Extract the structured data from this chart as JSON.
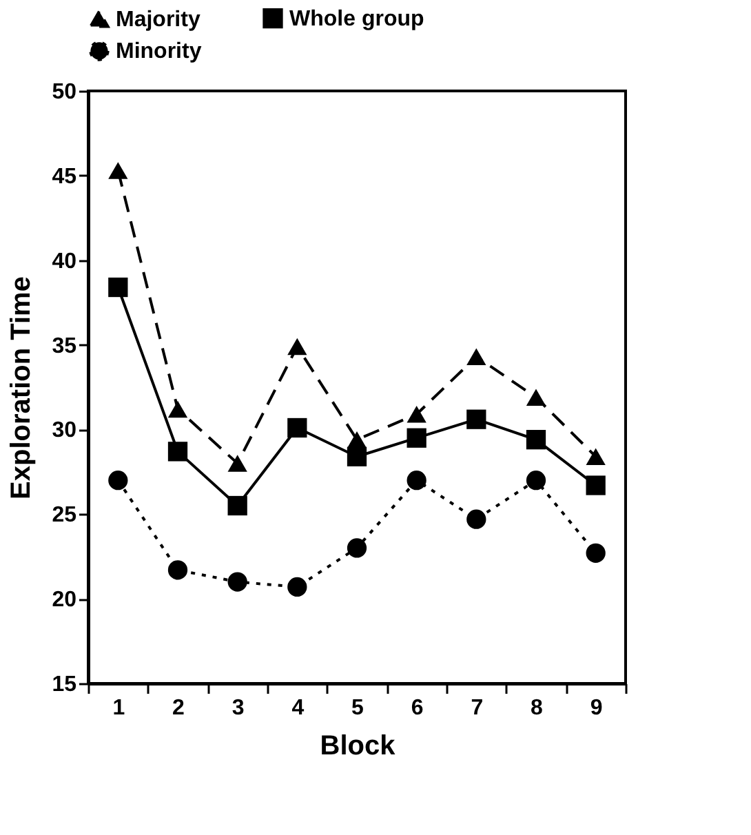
{
  "chart_data": {
    "type": "line",
    "xlabel": "Block",
    "ylabel": "Exploration Time",
    "categories": [
      "1",
      "2",
      "3",
      "4",
      "5",
      "6",
      "7",
      "8",
      "9"
    ],
    "ylim": [
      15,
      50
    ],
    "yticks": [
      15,
      20,
      25,
      30,
      35,
      40,
      45,
      50
    ],
    "grid": false,
    "legend": "top",
    "series": [
      {
        "name": "Majority",
        "color": "#000000",
        "marker": "triangle",
        "line_style": "dashed",
        "values": [
          45.3,
          31.2,
          28.0,
          34.9,
          29.4,
          30.9,
          34.3,
          31.9,
          28.4
        ]
      },
      {
        "name": "Whole group",
        "color": "#000000",
        "marker": "square",
        "line_style": "solid",
        "values": [
          38.4,
          28.7,
          25.5,
          30.1,
          28.4,
          29.5,
          30.6,
          29.4,
          26.7
        ]
      },
      {
        "name": "Minority",
        "color": "#000000",
        "marker": "circle",
        "line_style": "dotted",
        "values": [
          27.0,
          21.7,
          21.0,
          20.7,
          23.0,
          27.0,
          24.7,
          27.0,
          22.7
        ]
      }
    ]
  }
}
